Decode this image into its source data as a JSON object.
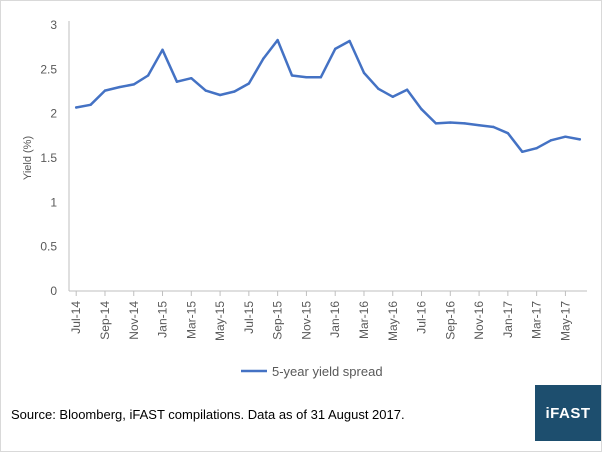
{
  "chart_data": {
    "type": "line",
    "title": "",
    "ylabel": "Yield (%)",
    "xlabel": "",
    "ylim": [
      0,
      3
    ],
    "yticks": [
      "0",
      "0.5",
      "1",
      "1.5",
      "2",
      "2.5",
      "3"
    ],
    "x_tick_labels": [
      "Jul-14",
      "Sep-14",
      "Nov-14",
      "Jan-15",
      "Mar-15",
      "May-15",
      "Jul-15",
      "Sep-15",
      "Nov-15",
      "Jan-16",
      "Mar-16",
      "May-16",
      "Jul-16",
      "Sep-16",
      "Nov-16",
      "Jan-17",
      "Mar-17",
      "May-17"
    ],
    "categories": [
      "Jul-14",
      "Aug-14",
      "Sep-14",
      "Oct-14",
      "Nov-14",
      "Dec-14",
      "Jan-15",
      "Feb-15",
      "Mar-15",
      "Apr-15",
      "May-15",
      "Jun-15",
      "Jul-15",
      "Aug-15",
      "Sep-15",
      "Oct-15",
      "Nov-15",
      "Dec-15",
      "Jan-16",
      "Feb-16",
      "Mar-16",
      "Apr-16",
      "May-16",
      "Jun-16",
      "Jul-16",
      "Aug-16",
      "Sep-16",
      "Oct-16",
      "Nov-16",
      "Dec-16",
      "Jan-17",
      "Feb-17",
      "Mar-17",
      "Apr-17",
      "May-17",
      "Jun-17"
    ],
    "series": [
      {
        "name": "5-year yield spread",
        "color": "#4472c4",
        "values": [
          2.07,
          2.1,
          2.26,
          2.3,
          2.33,
          2.43,
          2.72,
          2.36,
          2.4,
          2.26,
          2.21,
          2.25,
          2.34,
          2.62,
          2.83,
          2.43,
          2.41,
          2.41,
          2.73,
          2.82,
          2.46,
          2.28,
          2.19,
          2.27,
          2.05,
          1.89,
          1.9,
          1.89,
          1.87,
          1.85,
          1.78,
          1.57,
          1.61,
          1.7,
          1.74,
          1.71
        ]
      }
    ],
    "grid": false,
    "legend_position": "bottom"
  },
  "footer": {
    "source": "Source: Bloomberg, iFAST compilations. Data as of 31 August 2017.",
    "logo_text": "iFAST",
    "logo_color": "#1d4e6e"
  }
}
